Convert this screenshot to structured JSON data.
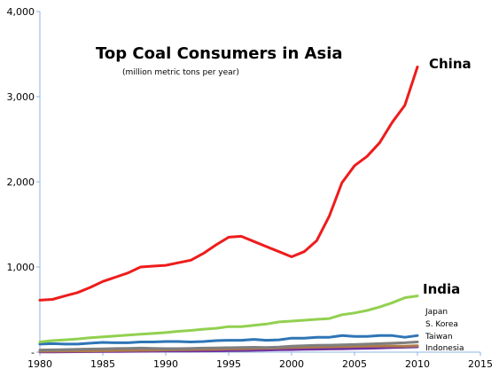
{
  "chart_data": {
    "type": "line",
    "title": "Top Coal Consumers in Asia",
    "subtitle": "(million metric tons per year)",
    "xlabel": "",
    "ylabel": "",
    "xlim": [
      1980,
      2015
    ],
    "ylim": [
      0,
      4000
    ],
    "x_ticks": [
      "1980",
      "1985",
      "1990",
      "1995",
      "2000",
      "2005",
      "2010",
      "2015"
    ],
    "y_ticks": [
      "-",
      "1,000",
      "2,000",
      "3,000",
      "4,000"
    ],
    "grid": false,
    "x": [
      1980,
      1981,
      1982,
      1983,
      1984,
      1985,
      1986,
      1987,
      1988,
      1989,
      1990,
      1991,
      1992,
      1993,
      1994,
      1995,
      1996,
      1997,
      1998,
      1999,
      2000,
      2001,
      2002,
      2003,
      2004,
      2005,
      2006,
      2007,
      2008,
      2009,
      2010
    ],
    "series": [
      {
        "name": "China",
        "color": "#ee1c1c",
        "label_emphasis": "large",
        "values": [
          610,
          620,
          660,
          700,
          760,
          830,
          880,
          930,
          1000,
          1010,
          1020,
          1050,
          1080,
          1160,
          1260,
          1350,
          1360,
          1300,
          1240,
          1180,
          1120,
          1180,
          1310,
          1600,
          1990,
          2190,
          2300,
          2460,
          2700,
          2900,
          3350
        ]
      },
      {
        "name": "India",
        "color": "#92d050",
        "label_emphasis": "large",
        "values": [
          120,
          135,
          145,
          155,
          170,
          180,
          190,
          200,
          210,
          220,
          230,
          245,
          255,
          270,
          280,
          300,
          300,
          315,
          330,
          355,
          365,
          375,
          385,
          395,
          440,
          460,
          490,
          530,
          580,
          640,
          660
        ]
      },
      {
        "name": "Japan",
        "color": "#2e75b6",
        "label_emphasis": "small",
        "values": [
          95,
          100,
          95,
          95,
          105,
          115,
          110,
          110,
          120,
          120,
          125,
          125,
          120,
          125,
          135,
          140,
          140,
          150,
          140,
          145,
          165,
          165,
          175,
          175,
          195,
          185,
          185,
          195,
          195,
          175,
          195
        ]
      },
      {
        "name": "S. Korea",
        "color": "#7f7f7f",
        "label_emphasis": "small",
        "values": [
          25,
          27,
          30,
          33,
          36,
          40,
          43,
          45,
          48,
          45,
          42,
          42,
          45,
          48,
          50,
          52,
          55,
          57,
          55,
          60,
          70,
          75,
          80,
          82,
          85,
          90,
          95,
          100,
          105,
          110,
          120
        ]
      },
      {
        "name": "Taiwan",
        "color": "#b07a4a",
        "label_emphasis": "small",
        "values": [
          10,
          11,
          12,
          14,
          15,
          17,
          18,
          20,
          22,
          24,
          26,
          28,
          30,
          32,
          34,
          37,
          40,
          43,
          46,
          50,
          55,
          57,
          60,
          63,
          66,
          68,
          70,
          72,
          72,
          70,
          75
        ]
      },
      {
        "name": "Indonesia",
        "color": "#7030a0",
        "label_emphasis": "small",
        "values": [
          2,
          3,
          4,
          5,
          6,
          7,
          8,
          9,
          10,
          11,
          12,
          13,
          14,
          15,
          16,
          18,
          20,
          22,
          25,
          28,
          30,
          33,
          35,
          38,
          40,
          43,
          46,
          50,
          55,
          58,
          62
        ]
      }
    ],
    "legend": "direct labels at line ends"
  }
}
